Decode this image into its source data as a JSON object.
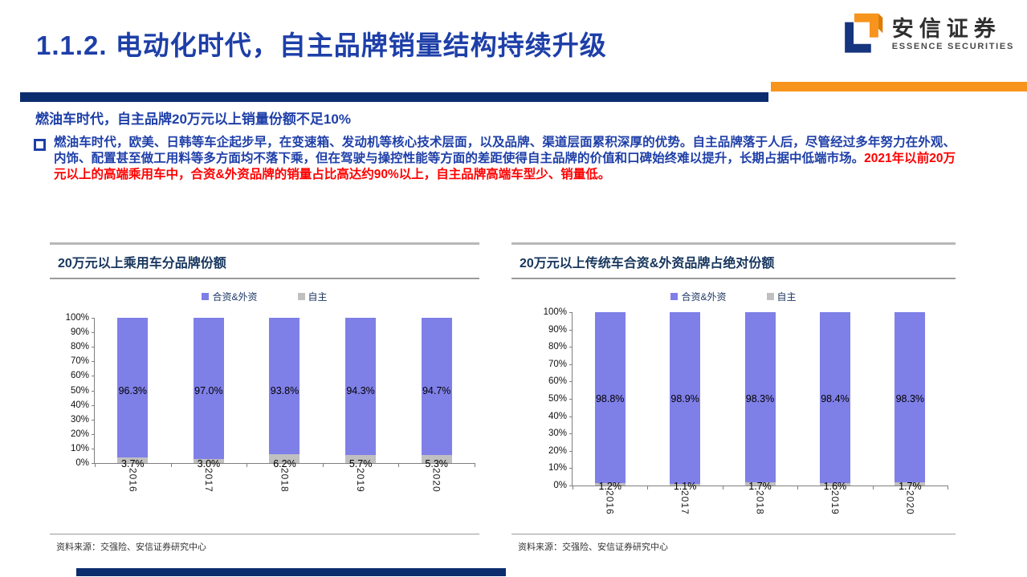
{
  "slide": {
    "title": "1.1.2. 电动化时代，自主品牌销量结构持续升级",
    "logo": {
      "name_cn": "安信证券",
      "name_en": "ESSENCE SECURITIES"
    },
    "heading": "燃油车时代，自主品牌20万元以上销量份额不足10%",
    "paragraph_blue": "燃油车时代，欧美、日韩等车企起步早，在变速箱、发动机等核心技术层面，以及品牌、渠道层面累积深厚的优势。自主品牌落于人后，尽管经过多年努力在外观、内饰、配置甚至做工用料等多方面均不落下乘，但在驾驶与操控性能等方面的差距使得自主品牌的价值和口碑始终难以提升，长期占据中低端市场。",
    "paragraph_red": "2021年以前20万元以上的高端乘用车中，合资&外资品牌的销量占比高达约90%以上，自主品牌高端车型少、销量低。",
    "colors": {
      "title_blue": "#1e3fa8",
      "navy_bar": "#0c2d6d",
      "orange_bar": "#f7941d",
      "red_text": "#ff0000"
    }
  },
  "chart_data": [
    {
      "type": "bar",
      "stacked": true,
      "title": "20万元以上乘用车分品牌份额",
      "categories": [
        "2016",
        "2017",
        "2018",
        "2019",
        "2020"
      ],
      "series": [
        {
          "name": "合资&外资",
          "color": "#7f7fe8",
          "values": [
            96.3,
            97.0,
            93.8,
            94.3,
            94.7
          ],
          "labels": [
            "96.3%",
            "97.0%",
            "93.8%",
            "94.3%",
            "94.7%"
          ]
        },
        {
          "name": "自主",
          "color": "#c0c0c0",
          "values": [
            3.7,
            3.0,
            6.2,
            5.7,
            5.3
          ],
          "labels": [
            "3.7%",
            "3.0%",
            "6.2%",
            "5.7%",
            "5.3%"
          ]
        }
      ],
      "ylim": [
        0,
        100
      ],
      "yticks": [
        "100%",
        "90%",
        "80%",
        "70%",
        "60%",
        "50%",
        "40%",
        "30%",
        "20%",
        "10%",
        "0%"
      ],
      "legend_position": "top",
      "grid": false,
      "x_label_rotation": "vertical",
      "source": "资料来源：交强险、安信证券研究中心"
    },
    {
      "type": "bar",
      "stacked": true,
      "title": "20万元以上传统车合资&外资品牌占绝对份额",
      "categories": [
        "2016",
        "2017",
        "2018",
        "2019",
        "2020"
      ],
      "series": [
        {
          "name": "合资&外资",
          "color": "#7f7fe8",
          "values": [
            98.8,
            98.9,
            98.3,
            98.4,
            98.3
          ],
          "labels": [
            "98.8%",
            "98.9%",
            "98.3%",
            "98.4%",
            "98.3%"
          ]
        },
        {
          "name": "自主",
          "color": "#c0c0c0",
          "values": [
            1.2,
            1.1,
            1.7,
            1.6,
            1.7
          ],
          "labels": [
            "1.2%",
            "1.1%",
            "1.7%",
            "1.6%",
            "1.7%"
          ]
        }
      ],
      "ylim": [
        0,
        100
      ],
      "yticks": [
        "100%",
        "90%",
        "80%",
        "70%",
        "60%",
        "50%",
        "40%",
        "30%",
        "20%",
        "10%",
        "0%"
      ],
      "legend_position": "top",
      "grid": false,
      "x_label_rotation": "vertical",
      "source": "资料来源：交强险、安信证券研究中心"
    }
  ]
}
